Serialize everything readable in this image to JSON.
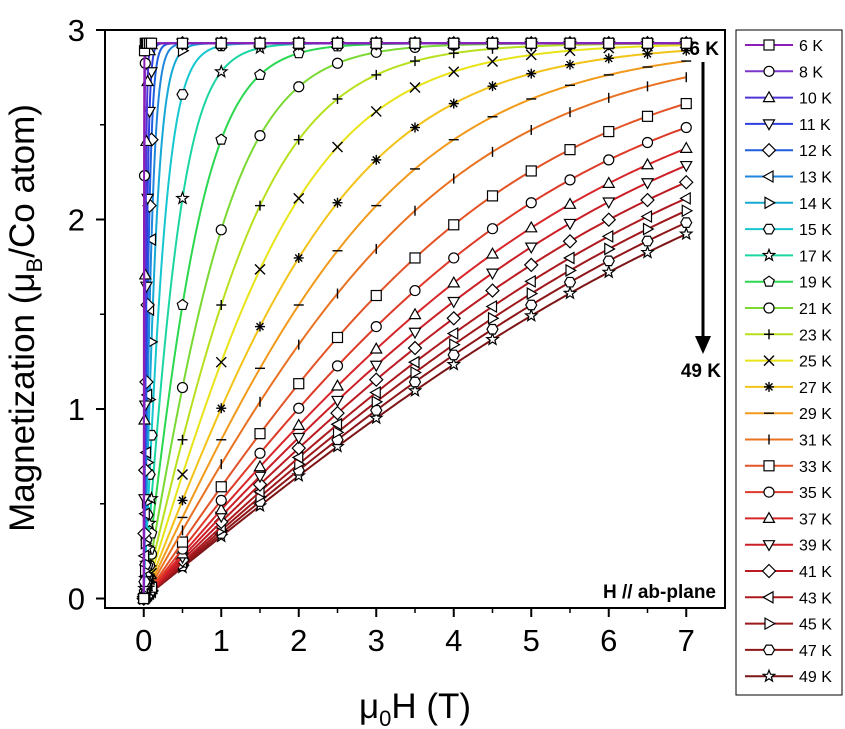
{
  "chart_data": {
    "type": "scatter-line",
    "xlabel_parts": [
      "μ",
      "0",
      "H (T)"
    ],
    "ylabel_parts": [
      "Magnetization (μ",
      "B",
      "/Co atom)"
    ],
    "xlim": [
      -0.5,
      7.5
    ],
    "ylim": [
      -0.05,
      3.0
    ],
    "xticks": [
      "0",
      "1",
      "2",
      "3",
      "4",
      "5",
      "6",
      "7"
    ],
    "yticks": [
      "0",
      "1",
      "2",
      "3"
    ],
    "annotation_field": "H // ab-plane",
    "annotation_top": "6 K",
    "annotation_bottom": "49 K",
    "legend_position": "right-outside",
    "x_markers": [
      0,
      0.5,
      1,
      1.5,
      2,
      2.5,
      3,
      3.5,
      4,
      4.5,
      5,
      5.5,
      6,
      6.5,
      7
    ],
    "series": [
      {
        "name": "6 K",
        "temperature": 6,
        "marker": "square",
        "color": "#8b1fb5",
        "msat": 2.93,
        "h0": 0.004,
        "p": 1.0
      },
      {
        "name": "8 K",
        "temperature": 8,
        "marker": "circle",
        "color": "#7a35c9",
        "msat": 2.93,
        "h0": 0.01,
        "p": 1.0
      },
      {
        "name": "10 K",
        "temperature": 10,
        "marker": "triangle-up",
        "color": "#4e35d6",
        "msat": 2.93,
        "h0": 0.03,
        "p": 1.0
      },
      {
        "name": "11 K",
        "temperature": 11,
        "marker": "triangle-down",
        "color": "#3040e0",
        "msat": 2.93,
        "h0": 0.055,
        "p": 1.0
      },
      {
        "name": "12 K",
        "temperature": 12,
        "marker": "diamond",
        "color": "#1f5fe0",
        "msat": 2.93,
        "h0": 0.085,
        "p": 1.0
      },
      {
        "name": "13 K",
        "temperature": 13,
        "marker": "triangle-left",
        "color": "#1f86dc",
        "msat": 2.93,
        "h0": 0.13,
        "p": 1.0
      },
      {
        "name": "14 K",
        "temperature": 14,
        "marker": "triangle-right",
        "color": "#16a9d6",
        "msat": 2.93,
        "h0": 0.2,
        "p": 1.0
      },
      {
        "name": "15 K",
        "temperature": 15,
        "marker": "hexagon",
        "color": "#16c7cf",
        "msat": 2.93,
        "h0": 0.33,
        "p": 1.0
      },
      {
        "name": "17 K",
        "temperature": 17,
        "marker": "star",
        "color": "#1bd6a2",
        "msat": 2.93,
        "h0": 0.55,
        "p": 1.0
      },
      {
        "name": "19 K",
        "temperature": 19,
        "marker": "pentagon",
        "color": "#2bd84f",
        "msat": 2.93,
        "h0": 0.85,
        "p": 1.0
      },
      {
        "name": "21 K",
        "temperature": 21,
        "marker": "circle",
        "color": "#7ad932",
        "msat": 2.93,
        "h0": 1.25,
        "p": 1.0
      },
      {
        "name": "23 K",
        "temperature": 23,
        "marker": "plus",
        "color": "#b7e01e",
        "msat": 2.93,
        "h0": 1.7,
        "p": 1.0
      },
      {
        "name": "25 K",
        "temperature": 25,
        "marker": "x",
        "color": "#e8e418",
        "msat": 2.93,
        "h0": 2.2,
        "p": 1.0
      },
      {
        "name": "27 K",
        "temperature": 27,
        "marker": "asterisk",
        "color": "#f2c318",
        "msat": 2.93,
        "h0": 2.8,
        "p": 1.0
      },
      {
        "name": "29 K",
        "temperature": 29,
        "marker": "dash",
        "color": "#f19a1b",
        "msat": 2.93,
        "h0": 3.4,
        "p": 1.0
      },
      {
        "name": "31 K",
        "temperature": 31,
        "marker": "vbar",
        "color": "#e87222",
        "msat": 2.93,
        "h0": 4.05,
        "p": 1.0
      },
      {
        "name": "33 K",
        "temperature": 33,
        "marker": "square",
        "color": "#e35326",
        "msat": 2.93,
        "h0": 4.9,
        "p": 1.0
      },
      {
        "name": "35 K",
        "temperature": 35,
        "marker": "circle",
        "color": "#de3a28",
        "msat": 2.93,
        "h0": 5.6,
        "p": 1.0
      },
      {
        "name": "37 K",
        "temperature": 37,
        "marker": "triangle-up",
        "color": "#d8262a",
        "msat": 2.93,
        "h0": 6.2,
        "p": 1.0
      },
      {
        "name": "39 K",
        "temperature": 39,
        "marker": "triangle-down",
        "color": "#cc1e26",
        "msat": 2.93,
        "h0": 6.7,
        "p": 1.0
      },
      {
        "name": "41 K",
        "temperature": 41,
        "marker": "diamond",
        "color": "#bd1b22",
        "msat": 2.93,
        "h0": 7.2,
        "p": 1.0
      },
      {
        "name": "43 K",
        "temperature": 43,
        "marker": "triangle-left",
        "color": "#ad1a1f",
        "msat": 2.93,
        "h0": 7.7,
        "p": 1.0
      },
      {
        "name": "45 K",
        "temperature": 45,
        "marker": "triangle-right",
        "color": "#9e181c",
        "msat": 2.93,
        "h0": 8.1,
        "p": 1.0
      },
      {
        "name": "47 K",
        "temperature": 47,
        "marker": "hexagon",
        "color": "#8e1619",
        "msat": 2.93,
        "h0": 8.5,
        "p": 1.0
      },
      {
        "name": "49 K",
        "temperature": 49,
        "marker": "star",
        "color": "#7d1416",
        "msat": 2.93,
        "h0": 8.9,
        "p": 1.0
      }
    ]
  }
}
